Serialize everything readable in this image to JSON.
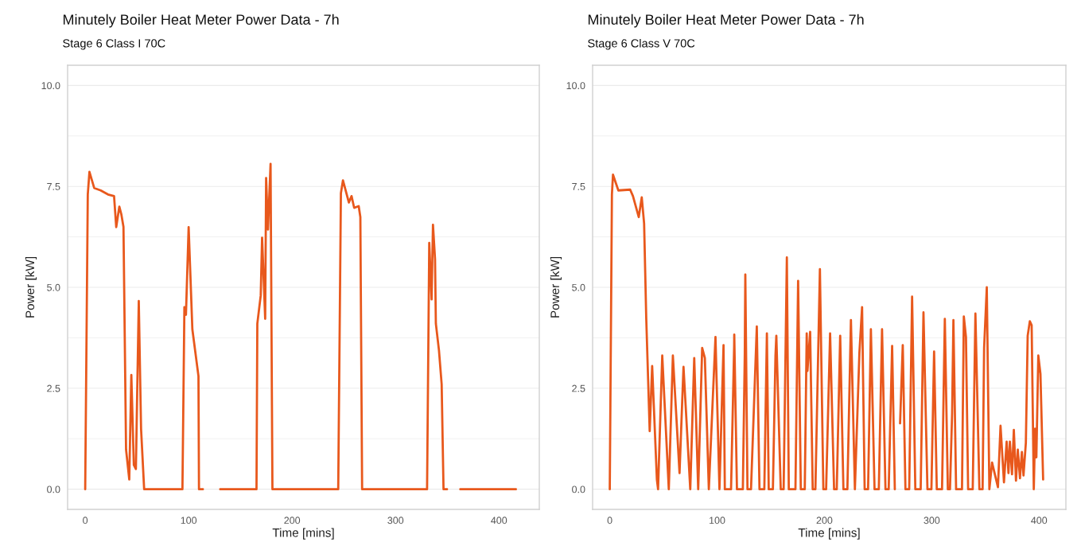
{
  "chart_data": [
    {
      "type": "line",
      "title": "Minutely Boiler Heat Meter Power Data - 7h",
      "subtitle": "Stage 6 Class I 70C",
      "xlabel": "Time [mins]",
      "ylabel": "Power [kW]",
      "x": [
        0,
        2.5,
        4.1,
        8.7,
        15,
        22,
        27.9,
        30,
        33,
        35,
        37,
        39.5,
        42.6,
        44.6,
        47,
        49,
        51.8,
        54,
        57,
        94,
        95.9,
        97.4,
        100,
        103.6,
        109.5,
        110,
        113.8,
        120,
        130.5,
        165.6,
        166.4,
        169.7,
        171,
        174,
        174.9,
        176.7,
        179.2,
        181,
        244.6,
        247.2,
        249.2,
        254.9,
        257.5,
        260,
        264.4,
        266,
        267.7,
        330.5,
        332.6,
        334.9,
        336.2,
        338.2,
        339,
        342,
        344.6,
        346.4,
        349.8,
        356,
        362.6,
        416.4
      ],
      "series": [
        {
          "color": "#e8581c",
          "values": [
            0,
            7.3,
            7.86,
            7.46,
            7.4,
            7.3,
            7.26,
            6.49,
            7.0,
            6.8,
            6.5,
            0.98,
            0.24,
            2.83,
            0.6,
            0.5,
            4.66,
            1.5,
            0,
            0,
            4.51,
            4.32,
            6.49,
            3.96,
            2.8,
            0,
            0,
            null,
            0,
            0,
            4.1,
            4.8,
            6.23,
            4.22,
            7.71,
            6.43,
            8.06,
            0,
            0,
            7.33,
            7.65,
            7.1,
            7.26,
            6.97,
            7.01,
            6.74,
            0,
            0,
            6.1,
            4.7,
            6.55,
            5.7,
            4.1,
            3.44,
            2.6,
            0,
            0,
            null,
            0,
            0
          ]
        }
      ],
      "xlim": [
        -17,
        439
      ],
      "ylim": [
        -0.5,
        10.5
      ],
      "xticks": [
        0,
        100,
        200,
        300,
        400
      ],
      "yticks": [
        {
          "value": 0,
          "label": "0.0"
        },
        {
          "value": 2.5,
          "label": "2.5"
        },
        {
          "value": 5,
          "label": "5.0"
        },
        {
          "value": 7.5,
          "label": "7.5"
        },
        {
          "value": 10,
          "label": "10.0"
        }
      ],
      "grid": "y"
    },
    {
      "type": "line",
      "title": "Minutely Boiler Heat Meter Power Data - 7h",
      "subtitle": "Stage 6 Class V 70C",
      "xlabel": "Time [mins]",
      "ylabel": "Power [kW]",
      "x": [
        0,
        2,
        3,
        8,
        19,
        21.6,
        27,
        29.8,
        32,
        34,
        37.2,
        39.5,
        43.9,
        45,
        48.9,
        55,
        58.8,
        65,
        68.7,
        75,
        78.7,
        82.4,
        86.1,
        88.6,
        92.3,
        98.5,
        102.2,
        106,
        107.2,
        113,
        115.9,
        116,
        118.5,
        124,
        125.8,
        126.3,
        128.3,
        131.6,
        137,
        139.5,
        144,
        146.4,
        148.1,
        152,
        154.4,
        155.2,
        159.3,
        162,
        165,
        166.8,
        173,
        175.5,
        178,
        181.7,
        183.5,
        184.2,
        186.7,
        189.1,
        191.6,
        195.8,
        199,
        201.6,
        205.3,
        209,
        211.5,
        214.7,
        217.7,
        221.4,
        224.7,
        228.4,
        232.6,
        235.1,
        237.5,
        240.7,
        243.3,
        246.7,
        250.7,
        253.7,
        256.9,
        259.9,
        263.1,
        265.6,
        267,
        270.5,
        273,
        275.5,
        279,
        281.7,
        284.7,
        289.7,
        292.3,
        296,
        299.7,
        302.2,
        304.7,
        309.6,
        312.2,
        315,
        317,
        319,
        320.2,
        322.7,
        328.2,
        329.9,
        331.9,
        333.9,
        338.2,
        340.7,
        344.4,
        347.4,
        348.8,
        351.3,
        353.7,
        356.2,
        361.7,
        364.1,
        367.3,
        369.8,
        371.5,
        372.8,
        374.8,
        376.5,
        378.5,
        380.2,
        382.2,
        384,
        385.5,
        387.7,
        389.4,
        391.4,
        393.1,
        395.1,
        396.3,
        397.5,
        399.3,
        401.3,
        403.8
      ],
      "series": [
        {
          "color": "#e8581c",
          "values": [
            0,
            7.3,
            7.79,
            7.4,
            7.42,
            7.26,
            6.74,
            7.23,
            6.58,
            4.22,
            1.44,
            3.05,
            0.24,
            0,
            3.31,
            0,
            3.31,
            0.4,
            3.03,
            0,
            3.25,
            0,
            3.5,
            3.25,
            0,
            3.77,
            0,
            3.57,
            0,
            0,
            3.55,
            3.83,
            0,
            0,
            3.35,
            5.32,
            0,
            0,
            4.03,
            0,
            0,
            3.86,
            0,
            0,
            3.31,
            3.8,
            0,
            0,
            5.74,
            0,
            0,
            5.16,
            0,
            0,
            3.86,
            2.93,
            3.9,
            0,
            0,
            5.45,
            0,
            0,
            3.86,
            0,
            0,
            3.8,
            0,
            0,
            4.19,
            0,
            3.38,
            4.51,
            0,
            0,
            3.96,
            0,
            0,
            3.96,
            0,
            0,
            3.55,
            0,
            null,
            1.63,
            3.57,
            0,
            0,
            4.77,
            0,
            0,
            4.38,
            0,
            0,
            3.41,
            0,
            0,
            4.22,
            0,
            0,
            1.89,
            4.19,
            0,
            0,
            4.28,
            3.77,
            0,
            0,
            4.35,
            0,
            0,
            3.5,
            5.0,
            0,
            0.66,
            0.05,
            1.57,
            0.17,
            1.18,
            0.4,
            1.18,
            0.37,
            1.47,
            0.21,
            0.98,
            0.27,
            0.92,
            0.34,
            1.15,
            3.8,
            4.16,
            4.06,
            0,
            1.5,
            0.79,
            3.31,
            2.86,
            0.24
          ]
        }
      ],
      "xlim": [
        -16,
        425
      ],
      "ylim": [
        -0.5,
        10.5
      ],
      "xticks": [
        0,
        100,
        200,
        300,
        400
      ],
      "yticks": [
        {
          "value": 0,
          "label": "0.0"
        },
        {
          "value": 2.5,
          "label": "2.5"
        },
        {
          "value": 5,
          "label": "5.0"
        },
        {
          "value": 7.5,
          "label": "7.5"
        },
        {
          "value": 10,
          "label": "10.0"
        }
      ],
      "grid": "y"
    }
  ]
}
